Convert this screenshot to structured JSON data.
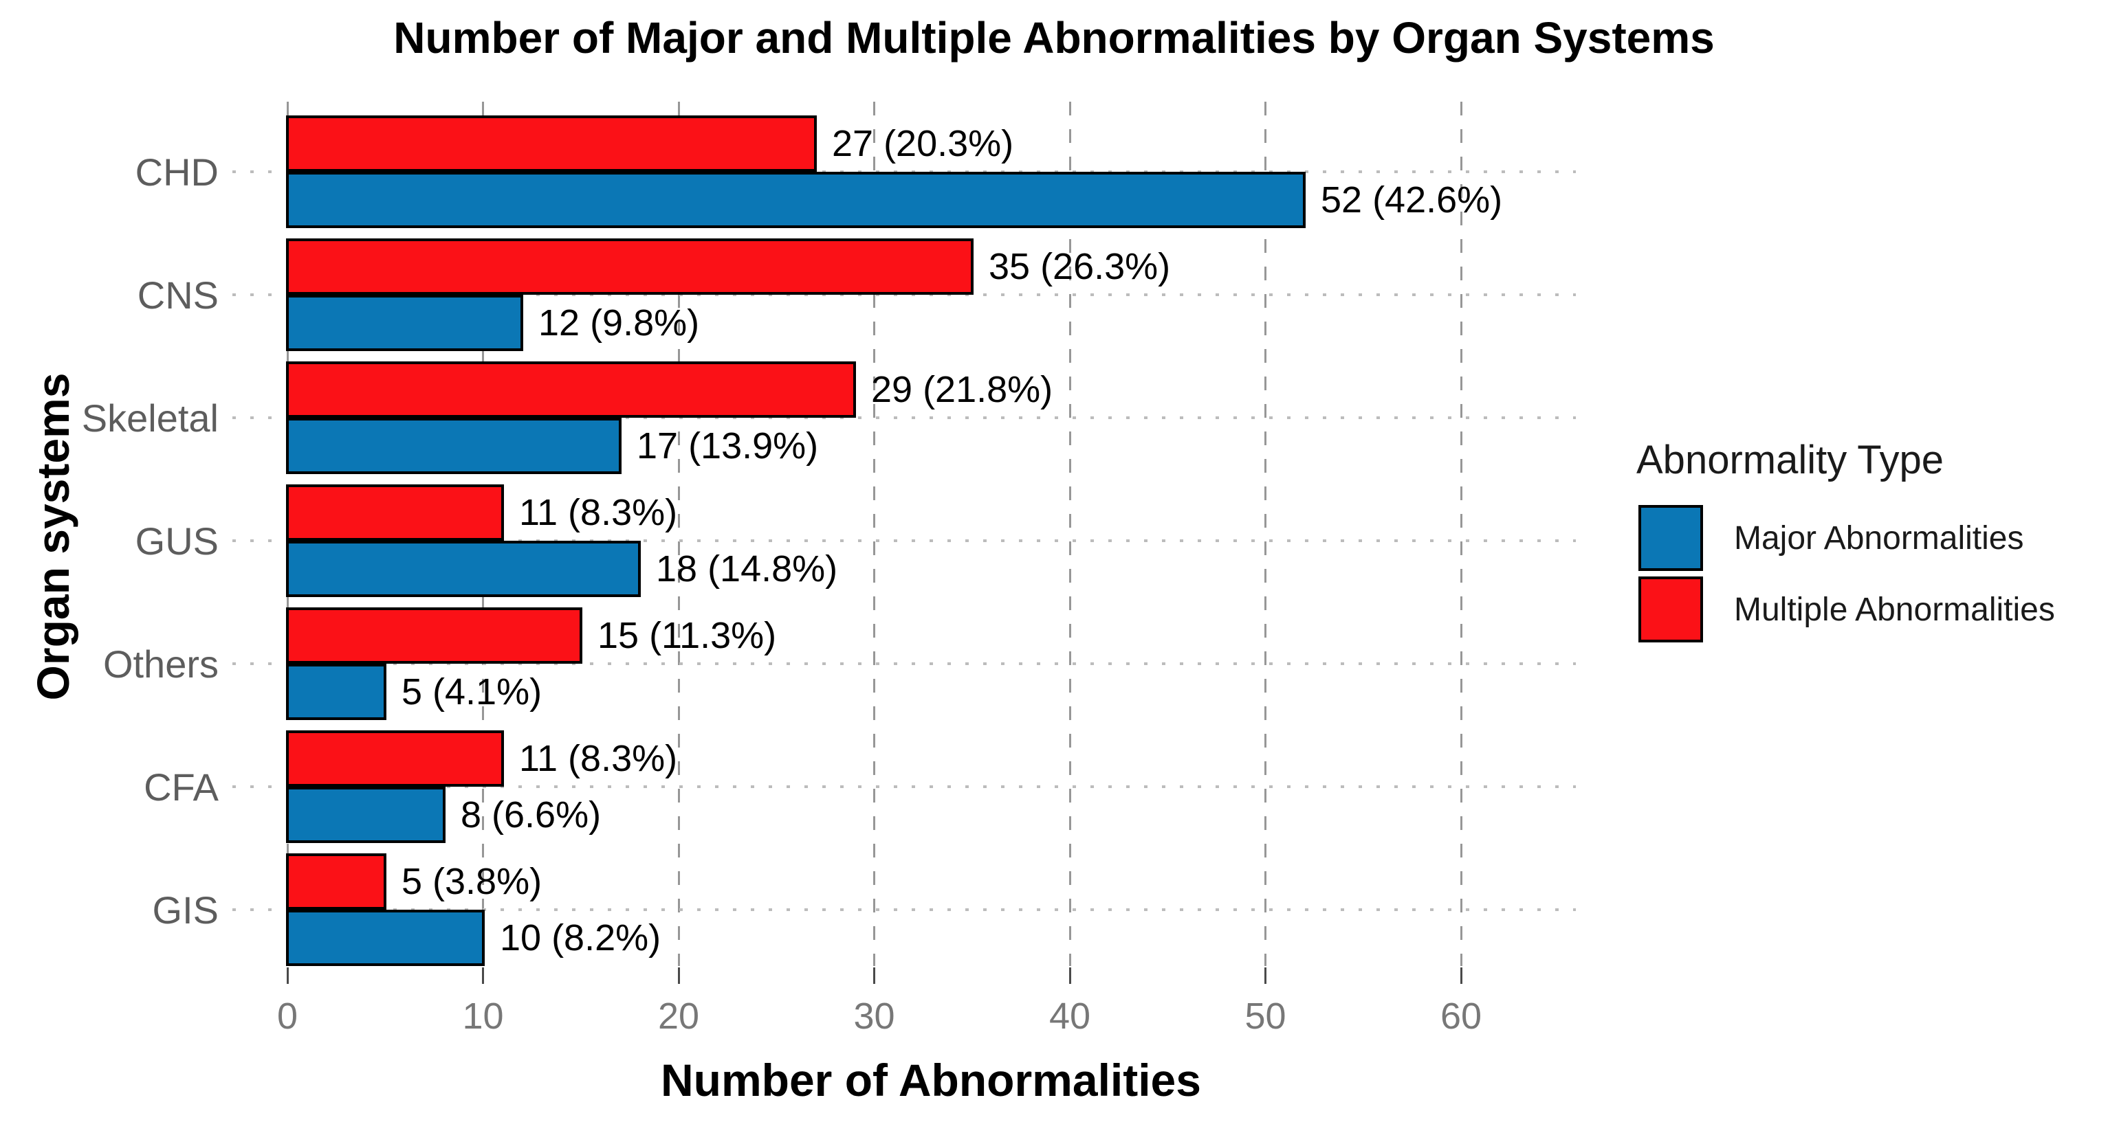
{
  "title": "Number of Major and Multiple Abnormalities by Organ Systems",
  "chart_data": {
    "type": "bar",
    "orientation": "horizontal",
    "title": "Number of Major and Multiple Abnormalities by Organ Systems",
    "xlabel": "Number of Abnormalities",
    "ylabel": "Organ systems",
    "categories": [
      "CHD",
      "CNS",
      "Skeletal",
      "GUS",
      "Others",
      "CFA",
      "GIS"
    ],
    "series": [
      {
        "name": "Major Abnormalities",
        "color": "#0B77B5",
        "position": "bottom",
        "values": [
          52,
          12,
          17,
          18,
          5,
          8,
          10
        ],
        "labels": [
          "52 (42.6%)",
          "12 (9.8%)",
          "17 (13.9%)",
          "18 (14.8%)",
          "5 (4.1%)",
          "8 (6.6%)",
          "10 (8.2%)"
        ]
      },
      {
        "name": "Multiple Abnormalities",
        "color": "#FB1117",
        "position": "top",
        "values": [
          27,
          35,
          29,
          11,
          15,
          11,
          5
        ],
        "labels": [
          "27 (20.3%)",
          "35 (26.3%)",
          "29 (21.8%)",
          "11 (8.3%)",
          "15 (11.3%)",
          "11 (8.3%)",
          "5 (3.8%)"
        ]
      }
    ],
    "x_ticks": [
      0,
      10,
      20,
      30,
      40,
      50,
      60
    ],
    "xlim": [
      0,
      66
    ],
    "legend_title": "Abnormality Type",
    "legend_position": "right",
    "grid": {
      "vertical": "dashed gray at each x tick",
      "horizontal": "dotted light gray at each category center"
    },
    "bar_outline_color": "#000000",
    "background_color": "#ffffff"
  }
}
